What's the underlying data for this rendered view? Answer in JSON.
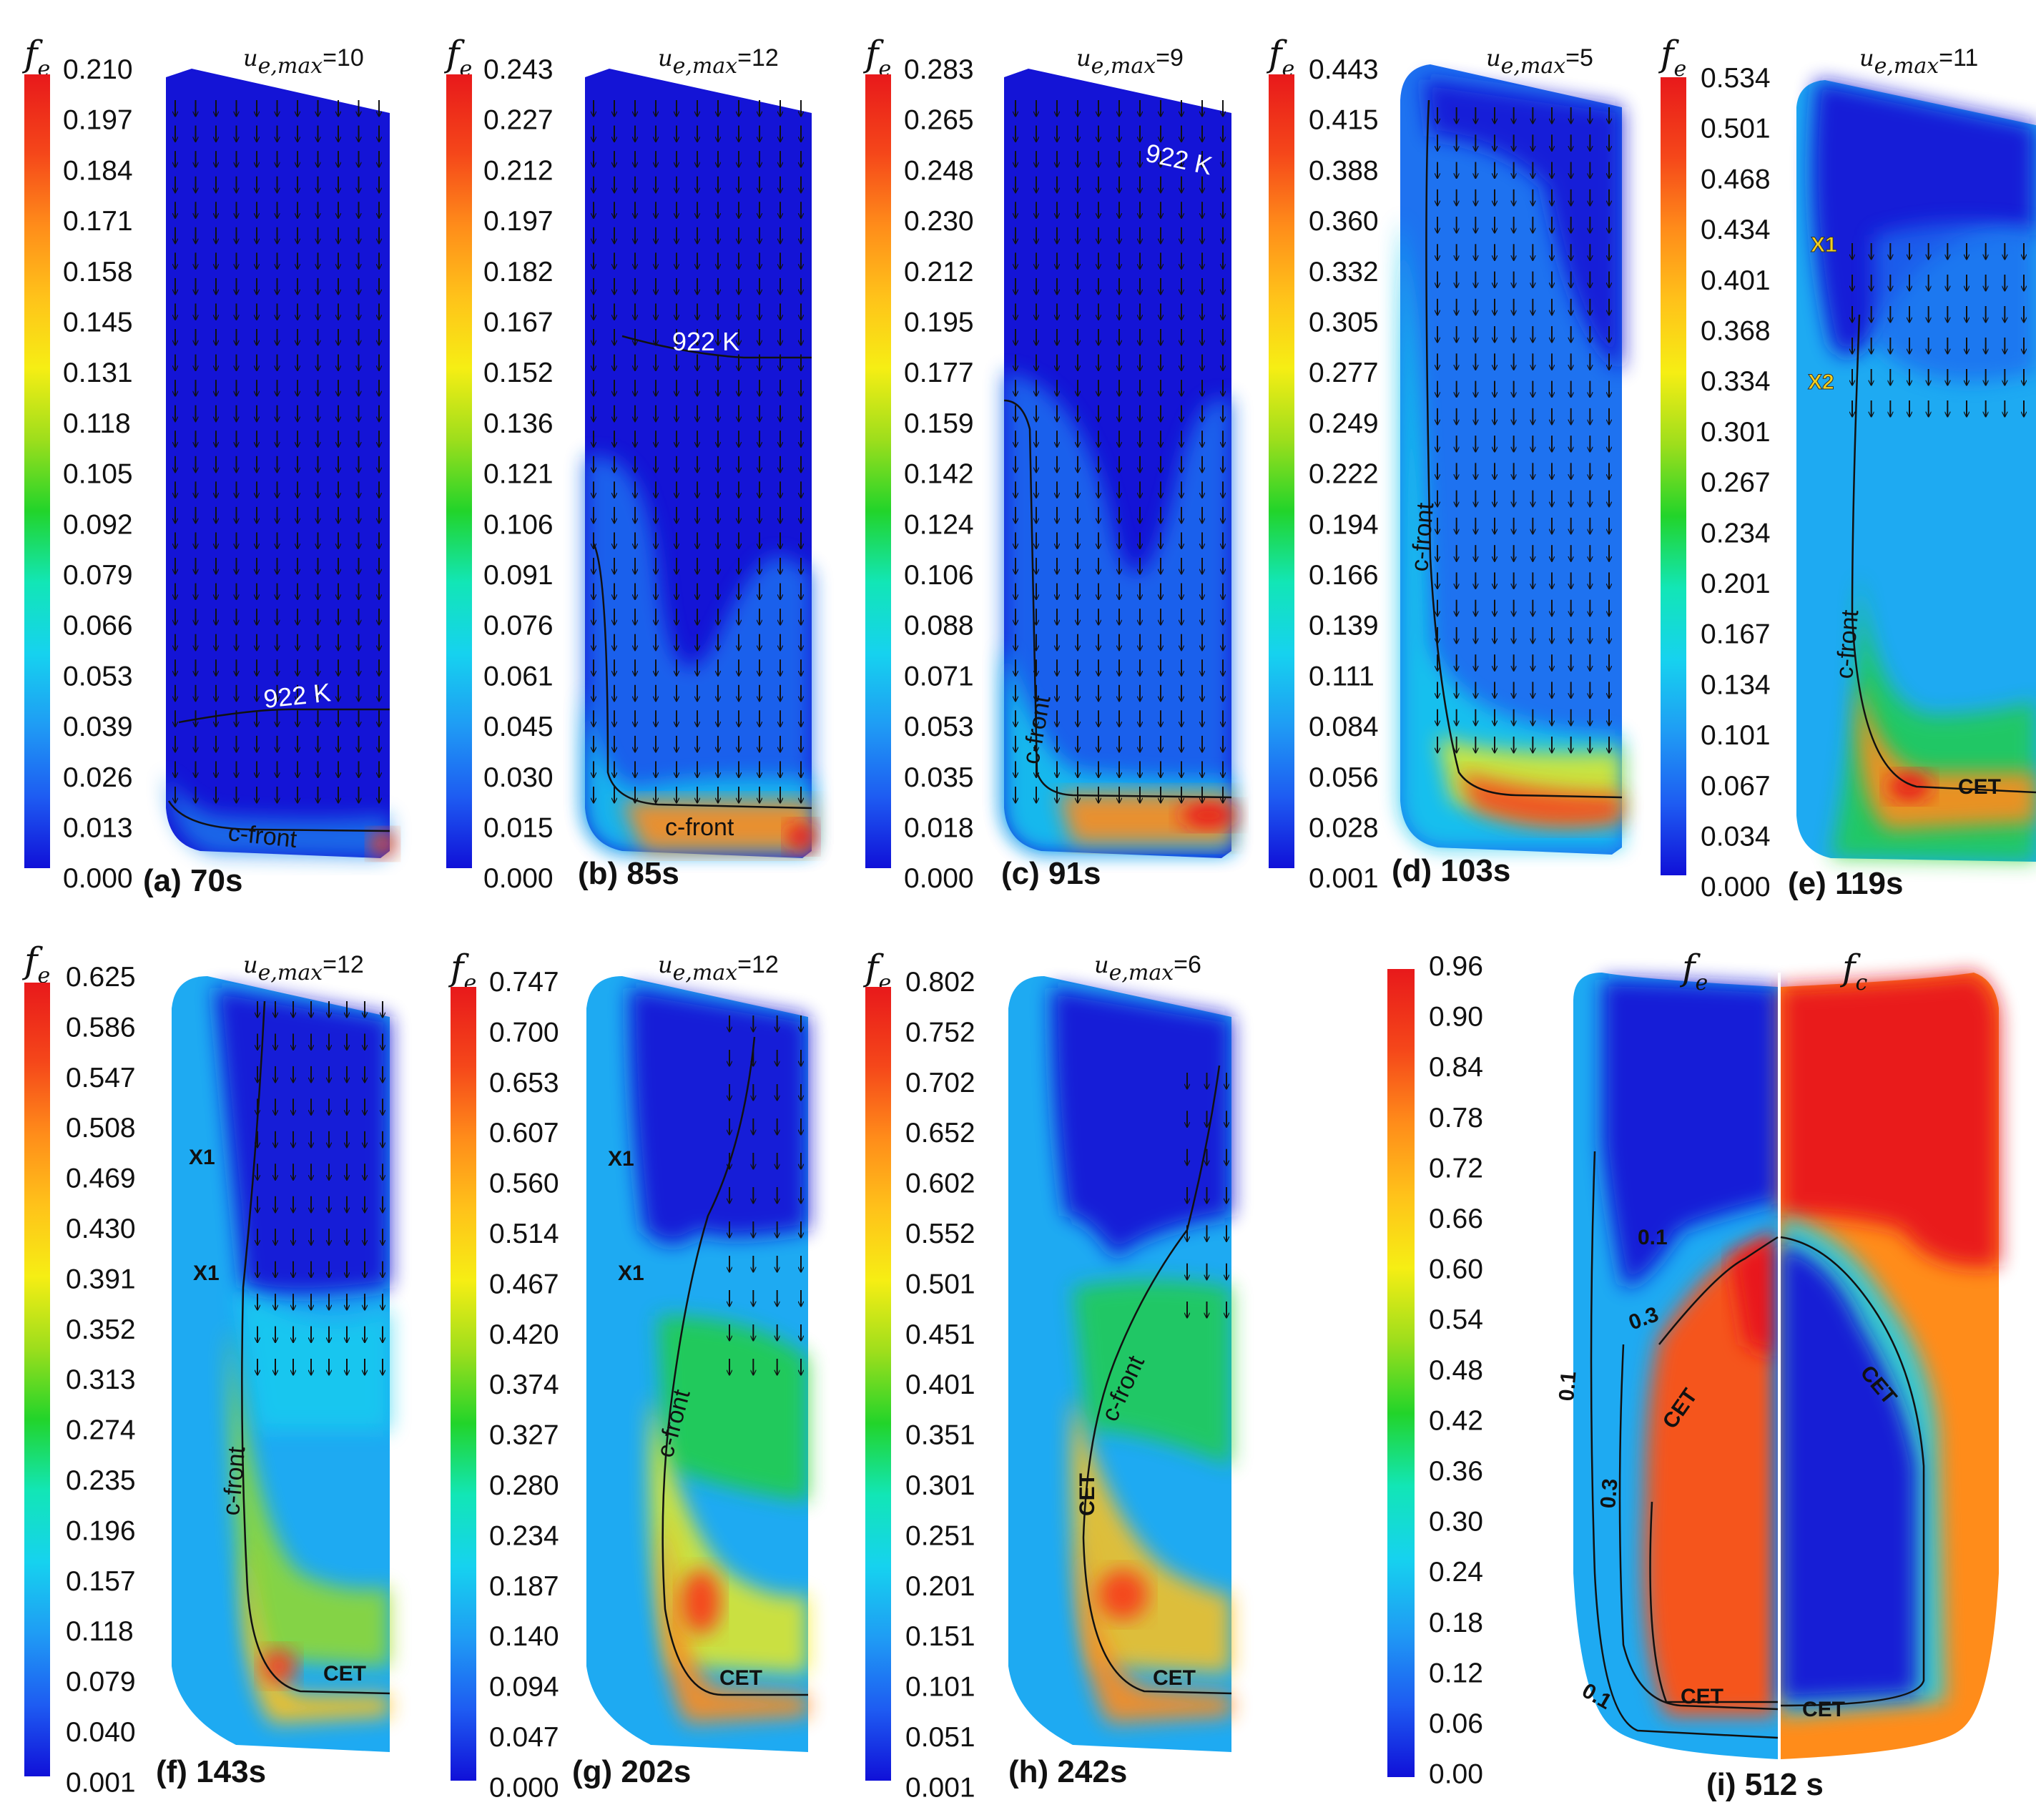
{
  "colormap": [
    "#1010d8",
    "#1e5cf2",
    "#1f9cf4",
    "#16d2ef",
    "#12e6b6",
    "#22d42a",
    "#9ede1c",
    "#f6ee14",
    "#ffc21a",
    "#ff8c1a",
    "#f5471a",
    "#e8191b"
  ],
  "quantity_symbol": "f",
  "quantity_sub": "e",
  "second_quantity_sub": "c",
  "velocity_symbol": "u",
  "velocity_sub": "e,max",
  "panels": [
    {
      "id": "a",
      "caption": "(a) 70s",
      "umax": "=10",
      "ticks": [
        "0.210",
        "0.197",
        "0.184",
        "0.171",
        "0.158",
        "0.145",
        "0.131",
        "0.118",
        "0.105",
        "0.092",
        "0.079",
        "0.066",
        "0.053",
        "0.039",
        "0.026",
        "0.013",
        "0.000"
      ],
      "annotations": {
        "isotherm": "922 K",
        "front": "c-front"
      }
    },
    {
      "id": "b",
      "caption": "(b) 85s",
      "umax": "=12",
      "ticks": [
        "0.243",
        "0.227",
        "0.212",
        "0.197",
        "0.182",
        "0.167",
        "0.152",
        "0.136",
        "0.121",
        "0.106",
        "0.091",
        "0.076",
        "0.061",
        "0.045",
        "0.030",
        "0.015",
        "0.000"
      ],
      "annotations": {
        "isotherm": "922 K",
        "front": "c-front"
      }
    },
    {
      "id": "c",
      "caption": "(c) 91s",
      "umax": "=9",
      "ticks": [
        "0.283",
        "0.265",
        "0.248",
        "0.230",
        "0.212",
        "0.195",
        "0.177",
        "0.159",
        "0.142",
        "0.124",
        "0.106",
        "0.088",
        "0.071",
        "0.053",
        "0.035",
        "0.018",
        "0.000"
      ],
      "annotations": {
        "isotherm": "922 K",
        "front": "c-front"
      }
    },
    {
      "id": "d",
      "caption": "(d) 103s",
      "umax": "=5",
      "ticks": [
        "0.443",
        "0.415",
        "0.388",
        "0.360",
        "0.332",
        "0.305",
        "0.277",
        "0.249",
        "0.222",
        "0.194",
        "0.166",
        "0.139",
        "0.111",
        "0.084",
        "0.056",
        "0.028",
        "0.001"
      ],
      "annotations": {
        "front": "c-front"
      }
    },
    {
      "id": "e",
      "caption": "(e) 119s",
      "umax": "=11",
      "ticks": [
        "0.534",
        "0.501",
        "0.468",
        "0.434",
        "0.401",
        "0.368",
        "0.334",
        "0.301",
        "0.267",
        "0.234",
        "0.201",
        "0.167",
        "0.134",
        "0.101",
        "0.067",
        "0.034",
        "0.000"
      ],
      "annotations": {
        "front": "c-front",
        "x1": "X1",
        "x2": "X2",
        "cet": "CET"
      }
    },
    {
      "id": "f",
      "caption": "(f) 143s",
      "umax": "=12",
      "ticks": [
        "0.625",
        "0.586",
        "0.547",
        "0.508",
        "0.469",
        "0.430",
        "0.391",
        "0.352",
        "0.313",
        "0.274",
        "0.235",
        "0.196",
        "0.157",
        "0.118",
        "0.079",
        "0.040",
        "0.001"
      ],
      "annotations": {
        "front": "c-front",
        "x1a": "X1",
        "x1b": "X1",
        "cet": "CET"
      }
    },
    {
      "id": "g",
      "caption": "(g) 202s",
      "umax": "=12",
      "ticks": [
        "0.747",
        "0.700",
        "0.653",
        "0.607",
        "0.560",
        "0.514",
        "0.467",
        "0.420",
        "0.374",
        "0.327",
        "0.280",
        "0.234",
        "0.187",
        "0.140",
        "0.094",
        "0.047",
        "0.000"
      ],
      "annotations": {
        "front": "c-front",
        "x1a": "X1",
        "x1b": "X1",
        "cet": "CET"
      }
    },
    {
      "id": "h",
      "caption": "(h) 242s",
      "umax": "=6",
      "ticks": [
        "0.802",
        "0.752",
        "0.702",
        "0.652",
        "0.602",
        "0.552",
        "0.501",
        "0.451",
        "0.401",
        "0.351",
        "0.301",
        "0.251",
        "0.201",
        "0.151",
        "0.101",
        "0.051",
        "0.001"
      ],
      "annotations": {
        "front": "c-front",
        "cet1": "CET",
        "cet2": "CET"
      }
    },
    {
      "id": "i",
      "caption": "(i) 512 s",
      "ticks": [
        "0.96",
        "0.90",
        "0.84",
        "0.78",
        "0.72",
        "0.66",
        "0.60",
        "0.54",
        "0.48",
        "0.42",
        "0.36",
        "0.30",
        "0.24",
        "0.18",
        "0.12",
        "0.06",
        "0.00"
      ],
      "annotations": {
        "c01a": "0.1",
        "c01b": "0.1",
        "c01c": "0.1",
        "c03a": "0.3",
        "c03b": "0.3",
        "cet1": "CET",
        "cet2": "CET",
        "cet3": "CET",
        "cet4": "CET"
      }
    }
  ]
}
